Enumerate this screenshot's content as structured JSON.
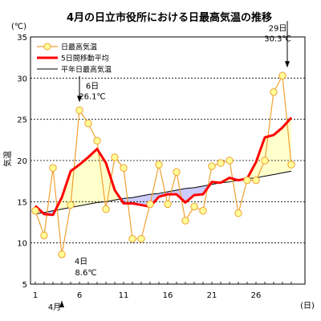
{
  "chart_data": {
    "type": "line",
    "title": "4月の日立市役所における日最高気温の推移",
    "ylabel": "気温",
    "yunit": "(℃)",
    "x_month_label": "4月",
    "x_unit": "(日)",
    "ylim": [
      5,
      35
    ],
    "yticks": [
      5,
      10,
      15,
      20,
      25,
      30,
      35
    ],
    "x": [
      1,
      2,
      3,
      4,
      5,
      6,
      7,
      8,
      9,
      10,
      11,
      12,
      13,
      14,
      15,
      16,
      17,
      18,
      19,
      20,
      21,
      22,
      23,
      24,
      25,
      26,
      27,
      28,
      29,
      30
    ],
    "xticks": [
      1,
      6,
      11,
      16,
      21,
      26
    ],
    "grid": true,
    "legend_position": "top-left",
    "series": [
      {
        "name": "日最高気温",
        "color": "#f0a030",
        "values": [
          13.9,
          10.9,
          19.1,
          8.6,
          14.6,
          26.1,
          24.5,
          22.4,
          14.1,
          20.4,
          19.1,
          10.5,
          10.5,
          14.7,
          19.5,
          14.7,
          18.6,
          12.7,
          14.4,
          13.9,
          19.3,
          19.7,
          20.0,
          13.6,
          17.6,
          17.6,
          20.0,
          28.3,
          30.3,
          19.5
        ]
      },
      {
        "name": "5日間移動平均",
        "color": "#ff0000",
        "values": [
          14.5,
          13.5,
          13.4,
          15.5,
          18.7,
          19.5,
          20.4,
          21.4,
          19.7,
          16.4,
          14.8,
          14.8,
          14.6,
          14.4,
          15.6,
          15.9,
          15.9,
          14.9,
          15.8,
          15.9,
          17.4,
          17.3,
          17.9,
          17.6,
          17.8,
          19.8,
          22.8,
          23.1,
          24.0,
          25.2
        ]
      },
      {
        "name": "平年日最高気温",
        "color": "#000000",
        "values": [
          13.5,
          13.7,
          13.9,
          14.1,
          14.3,
          14.5,
          14.7,
          14.9,
          15.0,
          15.2,
          15.4,
          15.5,
          15.7,
          15.9,
          16.0,
          16.2,
          16.4,
          16.6,
          16.7,
          16.9,
          17.1,
          17.3,
          17.4,
          17.6,
          17.8,
          17.9,
          18.1,
          18.3,
          18.5,
          18.7
        ]
      }
    ],
    "annotations": [
      {
        "day_label": "6日",
        "value_label": "26.1℃",
        "day": 6,
        "value": 26.1,
        "arrow": "down"
      },
      {
        "day_label": "29日",
        "value_label": "30.3℃",
        "day": 29,
        "value": 30.3,
        "arrow": "down"
      },
      {
        "day_label": "4日",
        "value_label": "8.6℃",
        "day": 4,
        "value": 8.6,
        "arrow": "up"
      }
    ],
    "fill_colors": {
      "above_normal": "#ffffcc",
      "below_normal": "#ccccff"
    },
    "marker_fill": "#ffff99"
  }
}
